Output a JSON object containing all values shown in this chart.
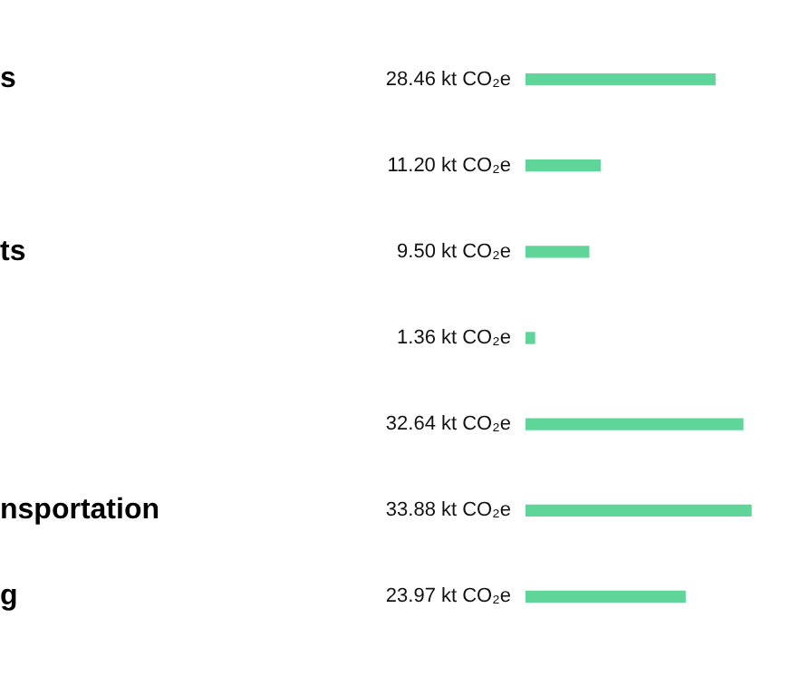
{
  "chart_data": {
    "type": "bar",
    "orientation": "horizontal",
    "categories": [
      "s",
      null,
      "ts",
      null,
      null,
      "nsportation",
      "g"
    ],
    "values": [
      28.46,
      11.2,
      9.5,
      1.36,
      32.64,
      33.88,
      23.97
    ],
    "value_labels": [
      "28.46 kt CO₂e",
      "11.20 kt CO₂e",
      "9.50 kt CO₂e",
      "1.36 kt CO₂e",
      "32.64 kt CO₂e",
      "33.88 kt CO₂e",
      "23.97 kt CO₂e"
    ],
    "color": "#5fd59a",
    "legend": false,
    "tick_labels": "y"
  }
}
